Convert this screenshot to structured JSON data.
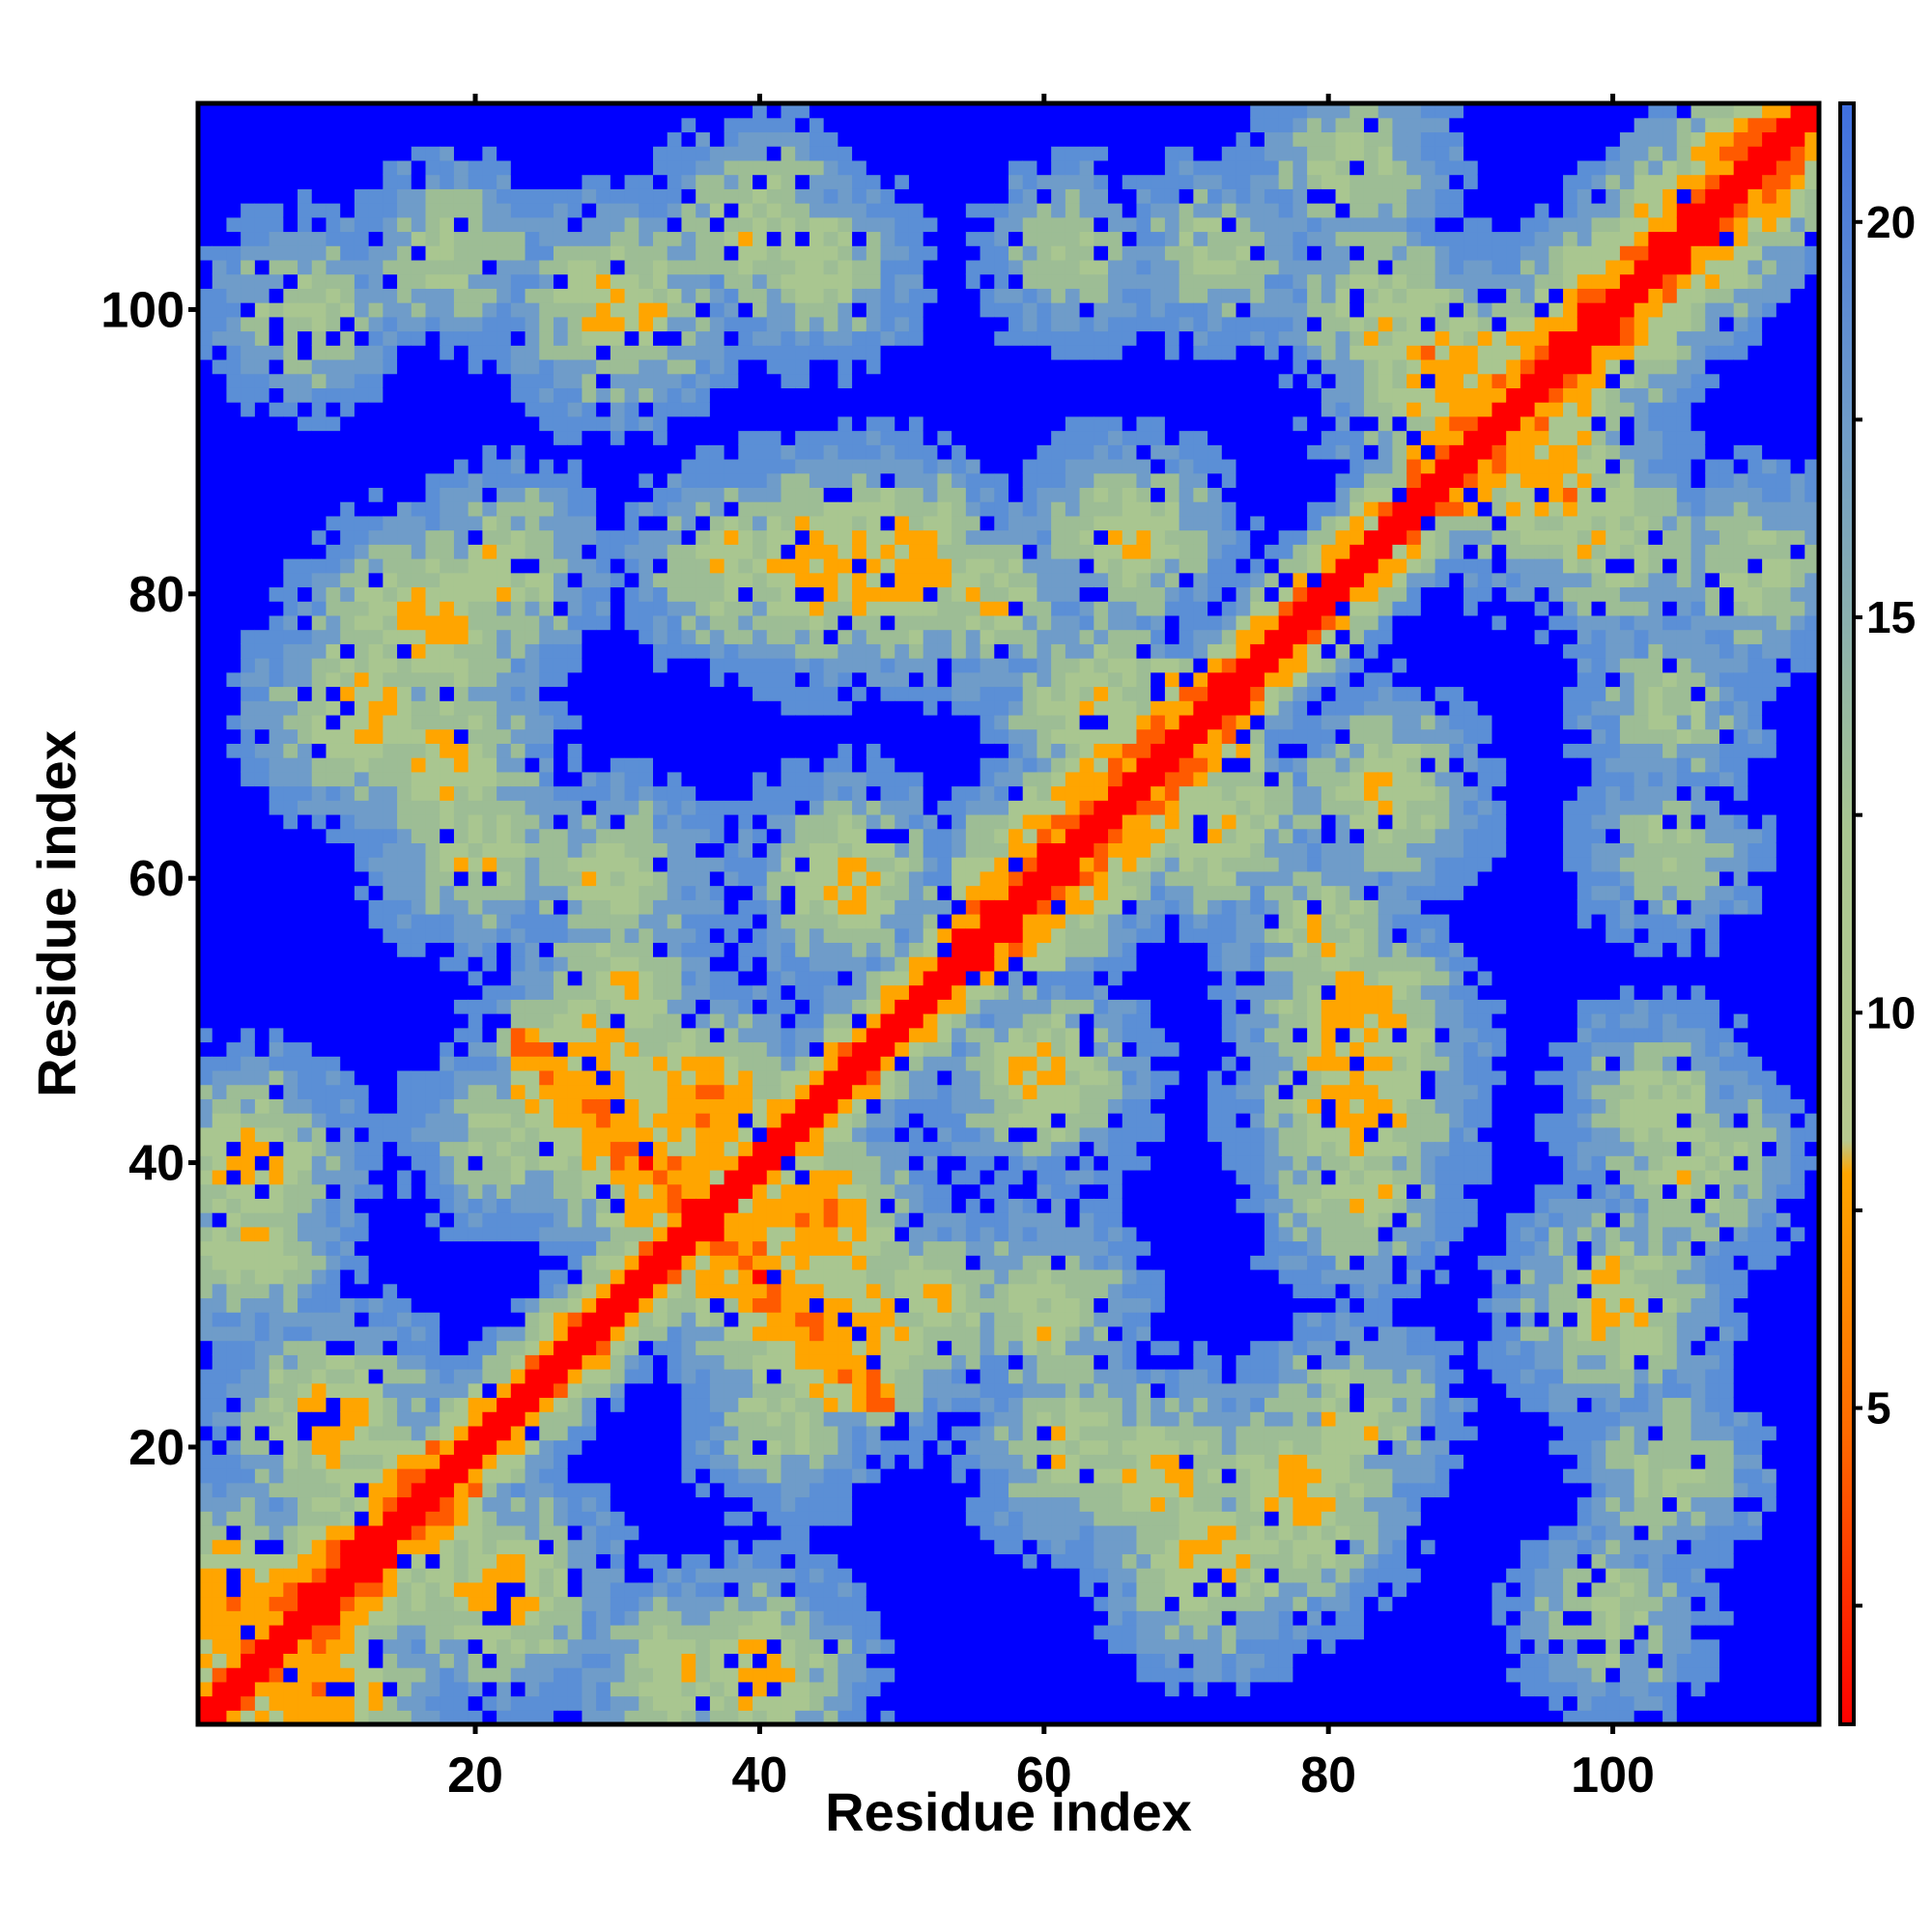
{
  "chart_data": {
    "type": "heatmap",
    "title": "",
    "xlabel": "Residue index",
    "ylabel": "Residue index",
    "xlim": [
      1,
      114
    ],
    "ylim": [
      1,
      114
    ],
    "x_ticks": [
      20,
      40,
      60,
      80,
      100
    ],
    "y_ticks": [
      20,
      40,
      60,
      80,
      100
    ],
    "x_tick_labels": [
      "20",
      "40",
      "60",
      "80",
      "100"
    ],
    "y_tick_labels": [
      "20",
      "40",
      "60",
      "80",
      "100"
    ],
    "n_residues": 114,
    "colorbar": {
      "ticks": [
        5,
        10,
        15,
        20
      ],
      "tick_labels": [
        "5",
        "10",
        "15",
        "20"
      ],
      "range": [
        1,
        21.5
      ],
      "position": "right"
    },
    "colors": {
      "far": "#0000ff",
      "mid_low": "#5b8fd6",
      "mid": "#6f9cc9",
      "mid_high": "#a9c690",
      "near": "#ffa500",
      "contact": "#ff0000"
    },
    "structure": {
      "diagonal_value": 2.0,
      "background_value": 21.5,
      "helices": [
        [
          4,
          20
        ],
        [
          54,
          75
        ],
        [
          86,
          114
        ]
      ],
      "contact_blobs": [
        {
          "i": 36,
          "j": 44,
          "w": 5,
          "v": 6.5
        },
        {
          "i": 28,
          "j": 47,
          "w": 4,
          "v": 7
        },
        {
          "i": 10,
          "j": 22,
          "w": 5,
          "v": 8
        },
        {
          "i": 4,
          "j": 40,
          "w": 4,
          "v": 8
        },
        {
          "i": 3,
          "j": 9,
          "w": 4,
          "v": 6
        },
        {
          "i": 8,
          "j": 2,
          "w": 3,
          "v": 6
        },
        {
          "i": 12,
          "j": 72,
          "w": 6,
          "v": 9
        },
        {
          "i": 17,
          "j": 78,
          "w": 5,
          "v": 8
        },
        {
          "i": 30,
          "j": 100,
          "w": 6,
          "v": 9
        },
        {
          "i": 38,
          "j": 82,
          "w": 5,
          "v": 10
        },
        {
          "i": 48,
          "j": 82,
          "w": 4,
          "v": 7
        },
        {
          "i": 50,
          "j": 82,
          "w": 4,
          "v": 7
        },
        {
          "i": 66,
          "j": 84,
          "w": 4,
          "v": 9
        },
        {
          "i": 72,
          "j": 64,
          "w": 5,
          "v": 9
        },
        {
          "i": 80,
          "j": 56,
          "w": 5,
          "v": 10
        },
        {
          "i": 82,
          "j": 44,
          "w": 4,
          "v": 7
        },
        {
          "i": 88,
          "j": 96,
          "w": 4,
          "v": 7
        },
        {
          "i": 95,
          "j": 88,
          "w": 4,
          "v": 7
        },
        {
          "i": 100,
          "j": 84,
          "w": 6,
          "v": 10
        },
        {
          "i": 103,
          "j": 44,
          "w": 6,
          "v": 11
        },
        {
          "i": 100,
          "j": 30,
          "w": 5,
          "v": 10
        },
        {
          "i": 68,
          "j": 18,
          "w": 5,
          "v": 9
        },
        {
          "i": 62,
          "j": 20,
          "w": 5,
          "v": 10
        },
        {
          "i": 78,
          "j": 14,
          "w": 4,
          "v": 10
        },
        {
          "i": 40,
          "j": 5,
          "w": 4,
          "v": 9
        },
        {
          "i": 34,
          "j": 4,
          "w": 4,
          "v": 10
        },
        {
          "i": 22,
          "j": 10,
          "w": 5,
          "v": 9
        },
        {
          "i": 42,
          "j": 22,
          "w": 5,
          "v": 11
        },
        {
          "i": 82,
          "j": 110,
          "w": 6,
          "v": 11
        },
        {
          "i": 100,
          "j": 100,
          "w": 6,
          "v": 11
        },
        {
          "i": 104,
          "j": 62,
          "w": 6,
          "v": 12
        },
        {
          "i": 72,
          "j": 104,
          "w": 6,
          "v": 12
        },
        {
          "i": 8,
          "j": 100,
          "w": 5,
          "v": 11
        },
        {
          "i": 18,
          "j": 104,
          "w": 5,
          "v": 11
        },
        {
          "i": 40,
          "j": 106,
          "w": 5,
          "v": 10
        },
        {
          "i": 82,
          "j": 22,
          "w": 5,
          "v": 10
        },
        {
          "i": 60,
          "j": 46,
          "w": 5,
          "v": 9
        },
        {
          "i": 46,
          "j": 60,
          "w": 5,
          "v": 9
        },
        {
          "i": 52,
          "j": 30,
          "w": 5,
          "v": 10
        },
        {
          "i": 30,
          "j": 60,
          "w": 5,
          "v": 10
        }
      ]
    }
  }
}
